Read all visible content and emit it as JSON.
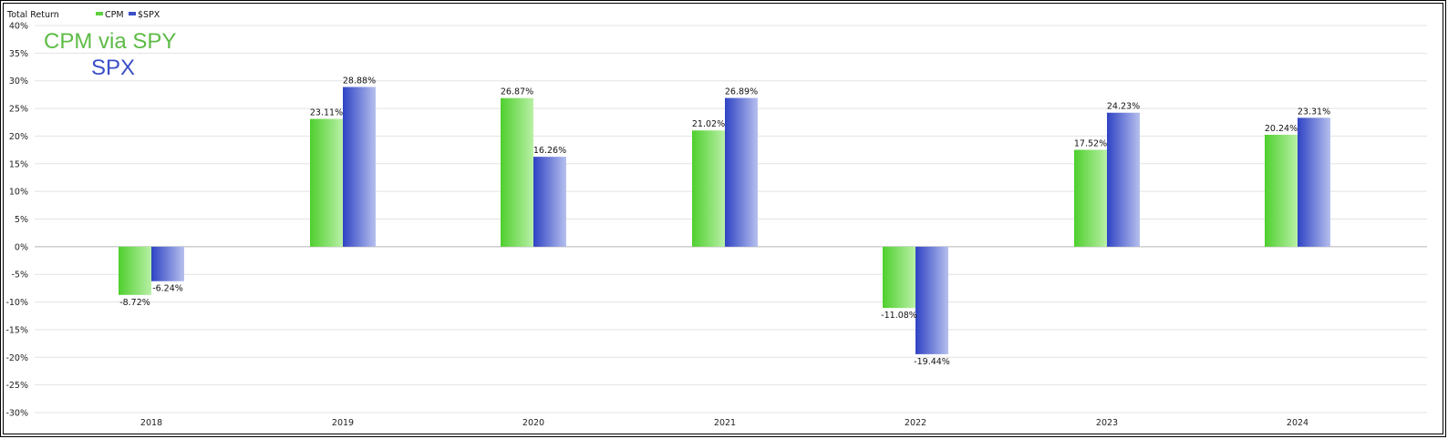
{
  "chart_data": {
    "type": "bar",
    "title": "Total Return",
    "categories": [
      "2018",
      "2019",
      "2020",
      "2021",
      "2022",
      "2023",
      "2024"
    ],
    "series": [
      {
        "name": "CPM",
        "values": [
          -8.72,
          23.11,
          26.87,
          21.02,
          -11.08,
          17.52,
          20.24
        ],
        "labels": [
          "-8.72%",
          "23.11%",
          "26.87%",
          "21.02%",
          "-11.08%",
          "17.52%",
          "20.24%"
        ],
        "color": "#5ed13f"
      },
      {
        "name": "$SPX",
        "values": [
          -6.24,
          28.88,
          16.26,
          26.89,
          -19.44,
          24.23,
          23.31
        ],
        "labels": [
          "-6.24%",
          "28.88%",
          "16.26%",
          "26.89%",
          "-19.44%",
          "24.23%",
          "23.31%"
        ],
        "color": "#3a4fc8"
      }
    ],
    "ylim": [
      -30,
      40
    ],
    "yticks": [
      "40%",
      "35%",
      "30%",
      "25%",
      "20%",
      "15%",
      "10%",
      "5%",
      "0%",
      "-5%",
      "-10%",
      "-15%",
      "-20%",
      "-25%",
      "-30%"
    ],
    "ytick_values": [
      40,
      35,
      30,
      25,
      20,
      15,
      10,
      5,
      0,
      -5,
      -10,
      -15,
      -20,
      -25,
      -30
    ],
    "grid": true,
    "legend_position": "top-left"
  },
  "annotations": {
    "line1": "CPM via SPY",
    "line1_color": "#5dbb46",
    "line2": "SPX",
    "line2_color": "#3a4fc8"
  }
}
